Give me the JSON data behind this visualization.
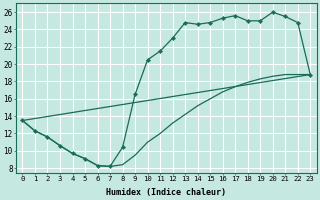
{
  "xlabel": "Humidex (Indice chaleur)",
  "bg_color": "#c5e8e0",
  "grid_color": "#ffffff",
  "line_color": "#1a6b5a",
  "xlim": [
    -0.5,
    23.5
  ],
  "ylim": [
    7.5,
    27
  ],
  "xticks": [
    0,
    1,
    2,
    3,
    4,
    5,
    6,
    7,
    8,
    9,
    10,
    11,
    12,
    13,
    14,
    15,
    16,
    17,
    18,
    19,
    20,
    21,
    22,
    23
  ],
  "yticks": [
    8,
    10,
    12,
    14,
    16,
    18,
    20,
    22,
    24,
    26
  ],
  "line1_x": [
    0,
    1,
    2,
    3,
    4,
    5,
    6,
    7,
    8,
    9,
    10,
    11,
    12,
    13,
    14,
    15,
    16,
    17,
    18,
    19,
    20,
    21,
    22,
    23
  ],
  "line1_y": [
    13.5,
    12.3,
    11.6,
    10.6,
    9.7,
    9.1,
    8.3,
    8.2,
    10.4,
    16.5,
    20.5,
    21.5,
    23.0,
    24.8,
    24.6,
    24.8,
    25.3,
    25.6,
    25.0,
    25.0,
    26.0,
    25.5,
    24.8,
    18.8
  ],
  "line2_x": [
    0,
    1,
    2,
    3,
    4,
    5,
    6,
    7,
    8,
    9,
    10,
    11,
    12,
    13,
    14,
    15,
    16,
    17,
    18,
    19,
    20,
    21,
    22,
    23
  ],
  "line2_y": [
    13.5,
    12.3,
    11.6,
    10.6,
    9.7,
    9.1,
    8.3,
    8.2,
    8.4,
    9.5,
    11.0,
    12.0,
    13.2,
    14.2,
    15.2,
    16.0,
    16.8,
    17.4,
    17.9,
    18.3,
    18.6,
    18.8,
    18.8,
    18.8
  ],
  "line3_x": [
    0,
    23
  ],
  "line3_y": [
    13.5,
    18.8
  ]
}
